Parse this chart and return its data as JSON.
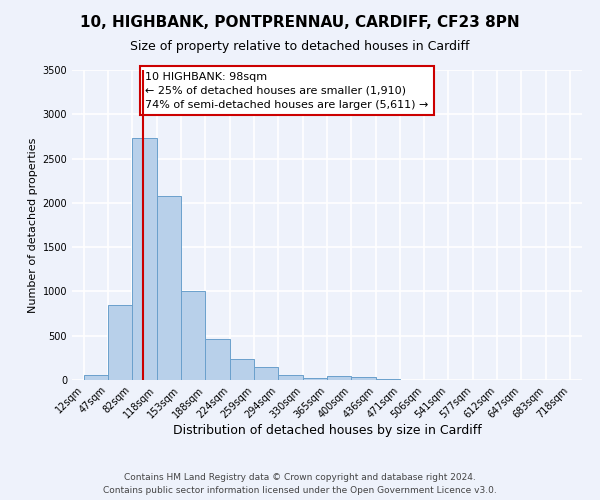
{
  "title": "10, HIGHBANK, PONTPRENNAU, CARDIFF, CF23 8PN",
  "subtitle": "Size of property relative to detached houses in Cardiff",
  "xlabel": "Distribution of detached houses by size in Cardiff",
  "ylabel": "Number of detached properties",
  "bar_color": "#b8d0ea",
  "bar_edge_color": "#6aa0cc",
  "background_color": "#eef2fb",
  "grid_color": "#ffffff",
  "vline_x": 98,
  "vline_color": "#cc0000",
  "annotation_line1": "10 HIGHBANK: 98sqm",
  "annotation_line2": "← 25% of detached houses are smaller (1,910)",
  "annotation_line3": "74% of semi-detached houses are larger (5,611) →",
  "annotation_box_color": "#ffffff",
  "annotation_box_edge_color": "#cc0000",
  "bin_edges": [
    12,
    47,
    82,
    118,
    153,
    188,
    224,
    259,
    294,
    330,
    365,
    400,
    436,
    471,
    506,
    541,
    577,
    612,
    647,
    683,
    718
  ],
  "bin_values": [
    55,
    850,
    2730,
    2080,
    1010,
    460,
    235,
    150,
    55,
    25,
    45,
    30,
    10,
    5,
    0,
    0,
    0,
    0,
    0,
    0
  ],
  "ylim": [
    0,
    3500
  ],
  "yticks": [
    0,
    500,
    1000,
    1500,
    2000,
    2500,
    3000,
    3500
  ],
  "xtick_labels": [
    "12sqm",
    "47sqm",
    "82sqm",
    "118sqm",
    "153sqm",
    "188sqm",
    "224sqm",
    "259sqm",
    "294sqm",
    "330sqm",
    "365sqm",
    "400sqm",
    "436sqm",
    "471sqm",
    "506sqm",
    "541sqm",
    "577sqm",
    "612sqm",
    "647sqm",
    "683sqm",
    "718sqm"
  ],
  "footer_line1": "Contains HM Land Registry data © Crown copyright and database right 2024.",
  "footer_line2": "Contains public sector information licensed under the Open Government Licence v3.0.",
  "title_fontsize": 11,
  "subtitle_fontsize": 9,
  "xlabel_fontsize": 9,
  "ylabel_fontsize": 8,
  "tick_fontsize": 7,
  "annotation_fontsize": 8,
  "footer_fontsize": 6.5
}
